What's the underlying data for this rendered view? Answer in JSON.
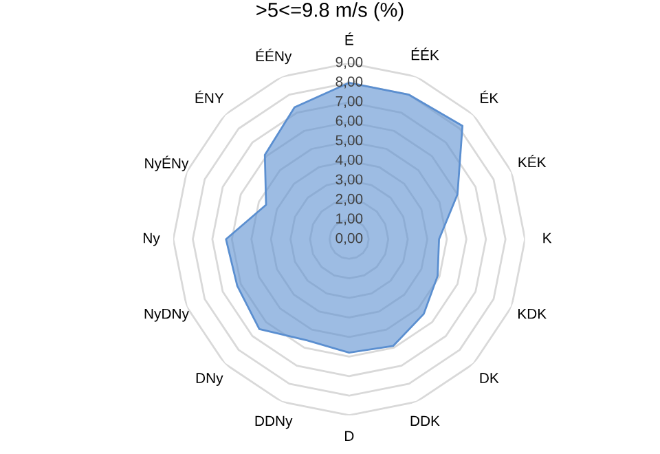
{
  "chart_data": {
    "type": "radar",
    "title": ">5<=9.8 m/s (%)",
    "categories": [
      "É",
      "ÉÉK",
      "ÉK",
      "KÉK",
      "K",
      "KDK",
      "DK",
      "DDK",
      "D",
      "DDNy",
      "DNy",
      "NyDNy",
      "Ny",
      "NyÉNy",
      "ÉNY",
      "ÉÉNy"
    ],
    "series": [
      {
        "color": "#5b8fd0",
        "values": [
          8.0,
          8.0,
          8.2,
          6.0,
          4.6,
          4.9,
          5.4,
          5.9,
          5.8,
          5.6,
          6.5,
          6.2,
          6.3,
          4.6,
          6.1,
          7.3
        ]
      }
    ],
    "ylim": [
      0,
      9
    ],
    "yticks": [
      {
        "value": 0,
        "label": "0,00"
      },
      {
        "value": 1,
        "label": "1,00"
      },
      {
        "value": 2,
        "label": "2,00"
      },
      {
        "value": 3,
        "label": "3,00"
      },
      {
        "value": 4,
        "label": "4,00"
      },
      {
        "value": 5,
        "label": "5,00"
      },
      {
        "value": 6,
        "label": "6,00"
      },
      {
        "value": 7,
        "label": "7,00"
      },
      {
        "value": 8,
        "label": "8,00"
      },
      {
        "value": 9,
        "label": "9,00"
      }
    ],
    "grid": true
  }
}
